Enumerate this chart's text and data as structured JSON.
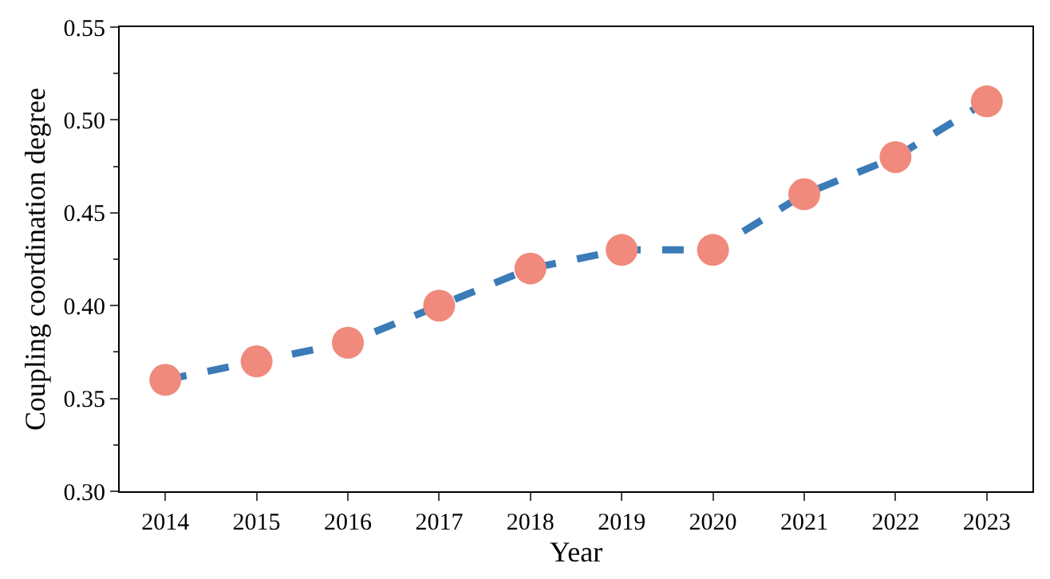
{
  "chart_data": {
    "type": "line",
    "xlabel": "Year",
    "ylabel": "Coupling coordination degree",
    "categories": [
      "2014",
      "2015",
      "2016",
      "2017",
      "2018",
      "2019",
      "2020",
      "2021",
      "2022",
      "2023"
    ],
    "series": [
      {
        "color": "#3a7bb8",
        "colors": [
          "#f08a7c",
          "#f08a7c",
          "#f08a7c",
          "#f08a7c",
          "#f08a7c",
          "#f08a7c",
          "#f08a7c",
          "#f08a7c",
          "#f08a7c",
          "#f08a7c"
        ],
        "values": [
          0.36,
          0.37,
          0.38,
          0.4,
          0.42,
          0.43,
          0.43,
          0.46,
          0.48,
          0.51
        ]
      }
    ],
    "ylim": [
      0.3,
      0.55
    ],
    "yticks": [
      {
        "value": 0.3,
        "label": "0.30"
      },
      0.35,
      {
        "value": 0.4,
        "label": "0.40"
      },
      0.45,
      {
        "value": 0.5,
        "label": "0.50"
      },
      0.55
    ],
    "marker": "circle",
    "line_style": "dashed"
  }
}
